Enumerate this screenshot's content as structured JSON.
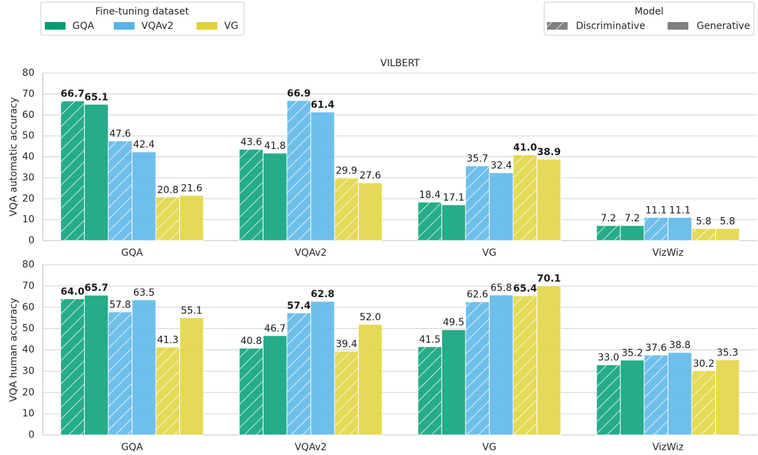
{
  "legend": {
    "dataset": {
      "title": "Fine-tuning dataset",
      "entries": [
        {
          "name": "GQA",
          "color": "#009e73"
        },
        {
          "name": "VQAv2",
          "color": "#56b4e9"
        },
        {
          "name": "VG",
          "color": "#e0d33a"
        }
      ]
    },
    "model": {
      "title": "Model",
      "entries": [
        {
          "name": "Discriminative",
          "hatch": true
        },
        {
          "name": "Generative",
          "hatch": false
        }
      ]
    }
  },
  "chart_data": [
    {
      "type": "bar",
      "title": "VILBERT",
      "ylabel": "VQA automatic accuracy",
      "categories": [
        "GQA",
        "VQAv2",
        "VG",
        "VizWiz"
      ],
      "values": [
        [
          [
            66.7,
            43.6,
            18.4,
            7.2
          ],
          [
            65.1,
            41.8,
            17.1,
            7.2
          ]
        ],
        [
          [
            47.6,
            66.9,
            35.7,
            11.1
          ],
          [
            42.4,
            61.4,
            32.4,
            11.1
          ]
        ],
        [
          [
            20.8,
            29.9,
            41.0,
            5.8
          ],
          [
            21.6,
            27.6,
            38.9,
            5.8
          ]
        ]
      ],
      "value_labels": [
        [
          [
            "66.7",
            "43.6",
            "18.4",
            "7.2"
          ],
          [
            "65.1",
            "41.8",
            "17.1",
            "7.2"
          ]
        ],
        [
          [
            "47.6",
            "66.9",
            "35.7",
            "11.1"
          ],
          [
            "42.4",
            "61.4",
            "32.4",
            "11.1"
          ]
        ],
        [
          [
            "20.8",
            "29.9",
            "41.0",
            "5.8"
          ],
          [
            "21.6",
            "27.6",
            "38.9",
            "5.8"
          ]
        ]
      ],
      "ylim": [
        0,
        80
      ],
      "yticks": [
        0,
        10,
        20,
        30,
        40,
        50,
        60,
        70,
        80
      ],
      "grid": true
    },
    {
      "type": "bar",
      "ylabel": "VQA human accuracy",
      "categories": [
        "GQA",
        "VQAv2",
        "VG",
        "VizWiz"
      ],
      "values": [
        [
          [
            64.0,
            40.8,
            41.5,
            33.0
          ],
          [
            65.7,
            46.7,
            49.5,
            35.2
          ]
        ],
        [
          [
            57.8,
            57.4,
            62.6,
            37.6
          ],
          [
            63.5,
            62.8,
            65.8,
            38.8
          ]
        ],
        [
          [
            41.3,
            39.4,
            65.4,
            30.2
          ],
          [
            55.1,
            52.0,
            70.1,
            35.3
          ]
        ]
      ],
      "value_labels": [
        [
          [
            "64.0",
            "40.8",
            "41.5",
            "33.0"
          ],
          [
            "65.7",
            "46.7",
            "49.5",
            "35.2"
          ]
        ],
        [
          [
            "57.8",
            "57.4",
            "62.6",
            "37.6"
          ],
          [
            "63.5",
            "62.8",
            "65.8",
            "38.8"
          ]
        ],
        [
          [
            "41.3",
            "39.4",
            "65.4",
            "30.2"
          ],
          [
            "55.1",
            "52.0",
            "70.1",
            "35.3"
          ]
        ]
      ],
      "ylim": [
        0,
        80
      ],
      "yticks": [
        0,
        10,
        20,
        30,
        40,
        50,
        60,
        70,
        80
      ],
      "grid": true
    }
  ]
}
